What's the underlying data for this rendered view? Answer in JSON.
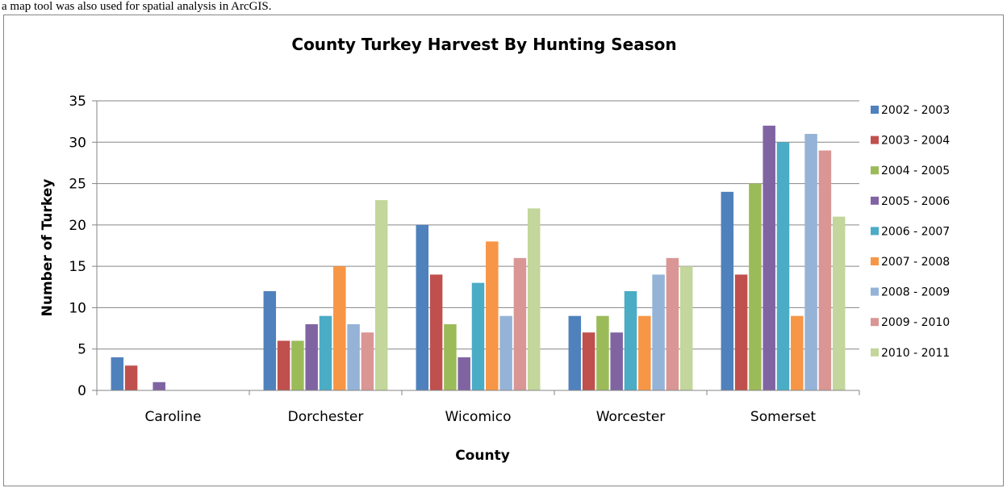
{
  "caption": "a map tool was also used for spatial analysis in ArcGIS.",
  "chart_data": {
    "type": "bar",
    "title": "County Turkey Harvest By Hunting Season",
    "xlabel": "County",
    "ylabel": "Number of Turkey",
    "ylim": [
      0,
      35
    ],
    "yticks": [
      0,
      5,
      10,
      15,
      20,
      25,
      30,
      35
    ],
    "grid": true,
    "legend_position": "right",
    "categories": [
      "Caroline",
      "Dorchester",
      "Wicomico",
      "Worcester",
      "Somerset"
    ],
    "series": [
      {
        "name": "2002 - 2003",
        "color": "#4F81BD",
        "values": [
          4,
          12,
          20,
          9,
          24
        ]
      },
      {
        "name": "2003 - 2004",
        "color": "#C0504D",
        "values": [
          3,
          6,
          14,
          7,
          14
        ]
      },
      {
        "name": "2004 - 2005",
        "color": "#9BBB59",
        "values": [
          0,
          6,
          8,
          9,
          25
        ]
      },
      {
        "name": "2005 - 2006",
        "color": "#8064A2",
        "values": [
          1,
          8,
          4,
          7,
          32
        ]
      },
      {
        "name": "2006 - 2007",
        "color": "#4BACC6",
        "values": [
          0,
          9,
          13,
          12,
          30
        ]
      },
      {
        "name": "2007 - 2008",
        "color": "#F79646",
        "values": [
          0,
          15,
          18,
          9,
          9
        ]
      },
      {
        "name": "2008 - 2009",
        "color": "#95B3D7",
        "values": [
          0,
          8,
          9,
          14,
          31
        ]
      },
      {
        "name": "2009 - 2010",
        "color": "#D99694",
        "values": [
          0,
          7,
          16,
          16,
          29
        ]
      },
      {
        "name": "2010 - 2011",
        "color": "#C3D69B",
        "values": [
          0,
          23,
          22,
          15,
          21
        ]
      }
    ]
  }
}
